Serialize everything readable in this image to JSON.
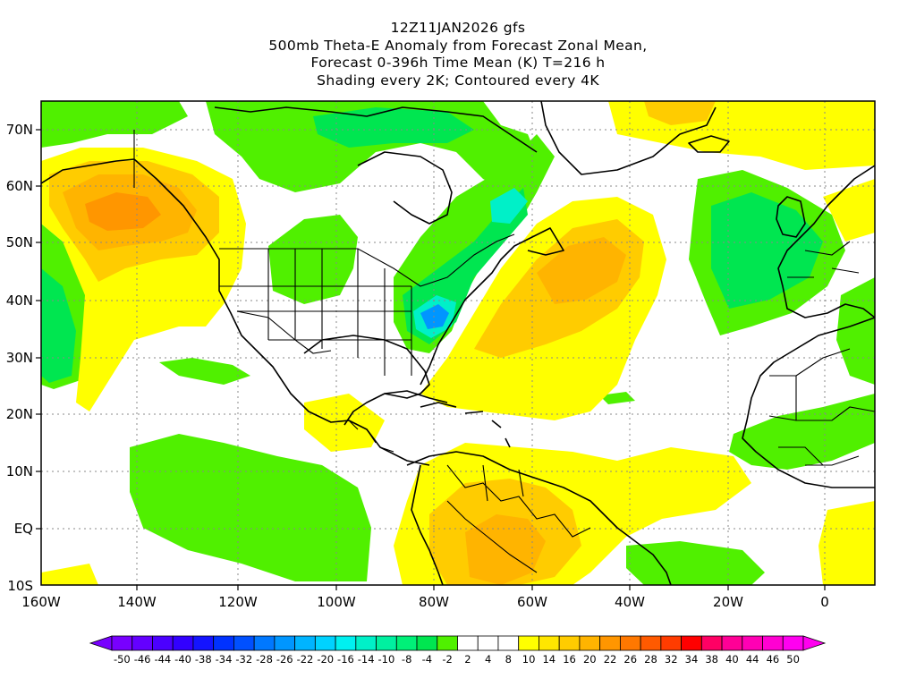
{
  "header": {
    "title_lines": [
      "12Z11JAN2026 gfs",
      "500mb Theta-E Anomaly from Forecast Zonal Mean,",
      "Forecast 0-396h Time Mean (K) T=216 h",
      "Shading every 2K; Contoured every 4K"
    ]
  },
  "axes": {
    "lon_ticks": [
      "160W",
      "140W",
      "120W",
      "100W",
      "80W",
      "60W",
      "40W",
      "20W",
      "0"
    ],
    "lat_ticks": [
      "70N",
      "60N",
      "50N",
      "40N",
      "30N",
      "20N",
      "10N",
      "EQ",
      "10S"
    ]
  },
  "colorbar": {
    "labels": [
      "-50",
      "-46",
      "-44",
      "-40",
      "-38",
      "-34",
      "-32",
      "-28",
      "-26",
      "-22",
      "-20",
      "-16",
      "-14",
      "-10",
      "-8",
      "-4",
      "-2",
      "2",
      "4",
      "8",
      "10",
      "14",
      "16",
      "20",
      "22",
      "26",
      "28",
      "32",
      "34",
      "38",
      "40",
      "44",
      "46",
      "50"
    ],
    "colors": [
      "#7800ff",
      "#6400ff",
      "#4b00ff",
      "#3200ff",
      "#1414ff",
      "#0032ff",
      "#0050ff",
      "#0078ff",
      "#0096ff",
      "#00b4ff",
      "#00d2ff",
      "#00f0f0",
      "#00f0c8",
      "#00f0a0",
      "#00f078",
      "#00e650",
      "#50f000",
      "#ffffff",
      "#ffffff",
      "#ffffff",
      "#ffff00",
      "#ffe600",
      "#ffcc00",
      "#ffb400",
      "#ff9600",
      "#ff7800",
      "#ff5a00",
      "#ff3c00",
      "#ff0000",
      "#ff0064",
      "#ff0096",
      "#ff00b4",
      "#ff00d2",
      "#ff00f0"
    ]
  }
}
